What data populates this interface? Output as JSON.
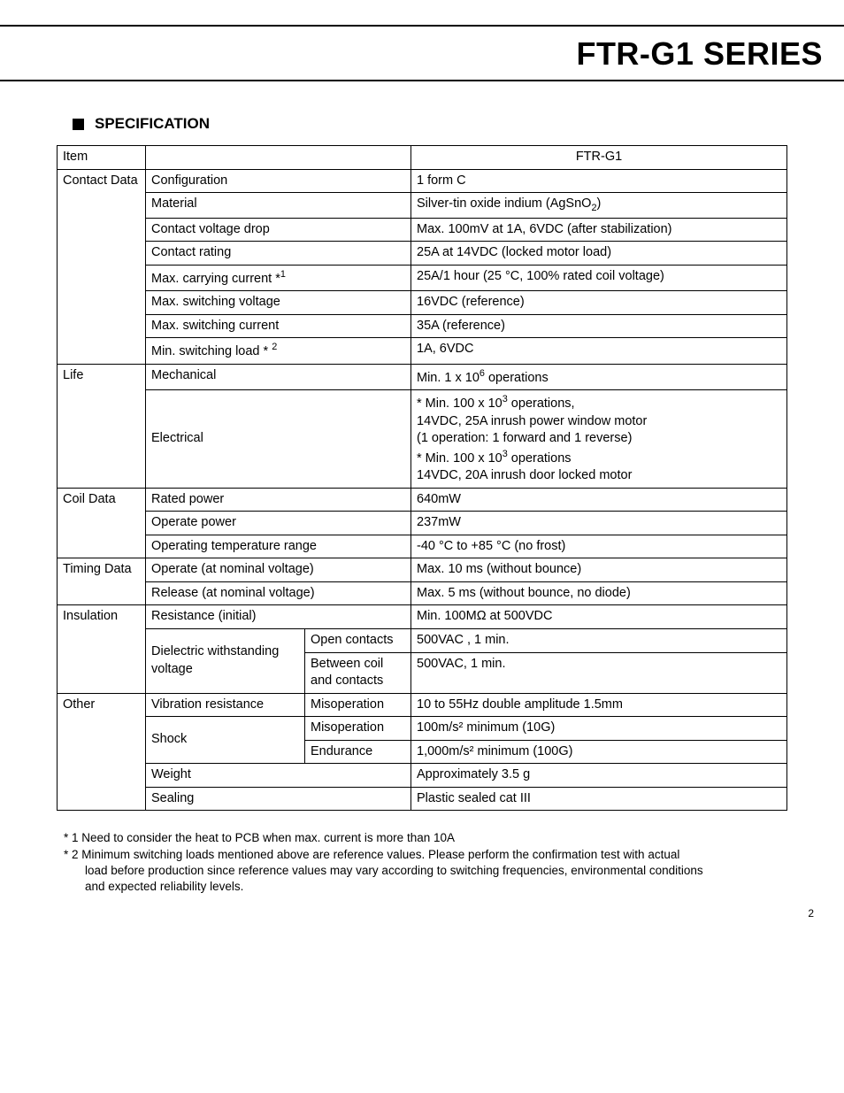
{
  "page_title": "FTR-G1 SERIES",
  "section_title": "SPECIFICATION",
  "page_number": "2",
  "header": {
    "item": "Item",
    "value": "FTR-G1"
  },
  "rows": {
    "contact": {
      "label": "Contact Data",
      "configuration": {
        "param": "Configuration",
        "value": "1 form C"
      },
      "material": {
        "param": "Material",
        "value": "Silver-tin oxide indium (AgSnO<sub>2</sub>)"
      },
      "voltage_drop": {
        "param": "Contact voltage drop",
        "value": "Max. 100mV at 1A, 6VDC (after stabilization)"
      },
      "rating": {
        "param": "Contact rating",
        "value": "25A at 14VDC (locked motor load)"
      },
      "max_carrying": {
        "param": "Max. carrying current *<sup>1</sup>",
        "value": "25A/1 hour (25 °C, 100% rated coil voltage)"
      },
      "max_sw_voltage": {
        "param": "Max. switching voltage",
        "value": "16VDC (reference)"
      },
      "max_sw_current": {
        "param": "Max. switching current",
        "value": "35A (reference)"
      },
      "min_sw_load": {
        "param": "Min. switching load * <sup>2</sup>",
        "value": "1A, 6VDC"
      }
    },
    "life": {
      "label": "Life",
      "mechanical": {
        "param": "Mechanical",
        "value": "Min. 1 x 10<sup>6</sup> operations"
      },
      "electrical": {
        "param": "Electrical",
        "value": "*  Min. 100 x 10<sup>3</sup> operations,\n    14VDC, 25A inrush power window motor\n    (1 operation: 1 forward and 1 reverse)\n*  Min. 100 x 10<sup>3</sup> operations\n    14VDC, 20A inrush door locked motor"
      }
    },
    "coil": {
      "label": "Coil Data",
      "rated": {
        "param": "Rated power",
        "value": "640mW"
      },
      "operate": {
        "param": "Operate power",
        "value": "237mW"
      },
      "temp": {
        "param": "Operating temperature range",
        "value": "-40 °C to +85 °C (no frost)"
      }
    },
    "timing": {
      "label": "Timing Data",
      "operate": {
        "param": "Operate (at nominal voltage)",
        "value": "Max. 10 ms (without bounce)"
      },
      "release": {
        "param": "Release (at nominal voltage)",
        "value": "Max. 5 ms (without bounce, no diode)"
      }
    },
    "insulation": {
      "label": "Insulation",
      "resistance": {
        "param": "Resistance (initial)",
        "value": "Min. 100MΩ at 500VDC"
      },
      "dielectric": {
        "param": "Dielectric withstanding voltage",
        "open": {
          "sub": "Open contacts",
          "value": "500VAC , 1 min."
        },
        "between": {
          "sub": "Between coil and contacts",
          "value": "500VAC, 1 min."
        }
      }
    },
    "other": {
      "label": "Other",
      "vibration": {
        "param": "Vibration resistance",
        "sub": "Misoperation",
        "value": "10 to 55Hz double amplitude 1.5mm"
      },
      "shock": {
        "param": "Shock",
        "misop": {
          "sub": "Misoperation",
          "value": "100m/s² minimum (10G)"
        },
        "endurance": {
          "sub": "Endurance",
          "value": "1,000m/s²  minimum (100G)"
        }
      },
      "weight": {
        "param": "Weight",
        "value": "Approximately 3.5 g"
      },
      "sealing": {
        "param": "Sealing",
        "value": "Plastic sealed cat III"
      }
    }
  },
  "footnotes": {
    "f1": "* 1 Need to consider the heat to PCB when max. current is more than 10A",
    "f2a": "* 2 Minimum switching loads mentioned above are reference values. Please perform the confirmation test with actual",
    "f2b": "load before production since reference values may vary according to switching frequencies, environmental conditions",
    "f2c": "and expected reliability levels."
  }
}
